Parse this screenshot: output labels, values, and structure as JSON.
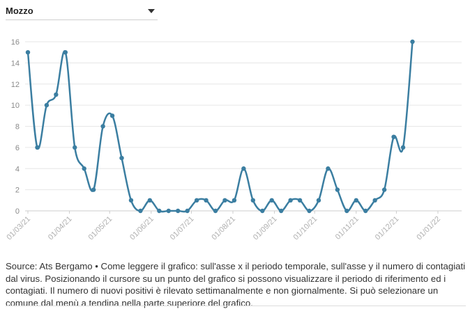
{
  "dropdown": {
    "selected": "Mozzo"
  },
  "footer": {
    "text": "Source: Ats Bergamo • Come leggere il grafico: sull'asse x il periodo temporale, sull'asse y il numero di contagiati dal virus. Posizionando il cursore su un punto del grafico si possono visualizzare il periodo di riferimento ed i contagiati. Il numero di nuovi positivi è rilevato settimanalmente e non giornalmente. Si può selezionare un comune dal menù a tendina nella parte superiore del grafico."
  },
  "colors": {
    "line": "#3b7ea1",
    "grid": "#e6e6e6",
    "axis": "#cccccc"
  },
  "chart_data": {
    "type": "line",
    "title": "",
    "xlabel": "",
    "ylabel": "",
    "ylim": [
      0,
      16
    ],
    "yticks": [
      0,
      2,
      4,
      6,
      8,
      10,
      12,
      14,
      16
    ],
    "xlim": [
      "2021-03-01",
      "2022-01-01"
    ],
    "xticks": [
      "01/03/21",
      "01/04/21",
      "01/05/21",
      "01/06/21",
      "01/07/21",
      "01/08/21",
      "01/09/21",
      "01/10/21",
      "01/11/21",
      "01/12/21",
      "01/01/22"
    ],
    "grid": true,
    "series": [
      {
        "x": [
          "2021-03-01",
          "2021-03-08",
          "2021-03-15",
          "2021-03-22",
          "2021-03-29",
          "2021-04-05",
          "2021-04-12",
          "2021-04-19",
          "2021-04-26",
          "2021-05-03",
          "2021-05-10",
          "2021-05-17",
          "2021-05-24",
          "2021-05-31",
          "2021-06-07",
          "2021-06-14",
          "2021-06-21",
          "2021-06-28",
          "2021-07-05",
          "2021-07-12",
          "2021-07-19",
          "2021-07-26",
          "2021-08-02",
          "2021-08-09",
          "2021-08-16",
          "2021-08-23",
          "2021-08-30",
          "2021-09-06",
          "2021-09-13",
          "2021-09-20",
          "2021-09-27",
          "2021-10-04",
          "2021-10-11",
          "2021-10-18",
          "2021-10-25",
          "2021-11-01",
          "2021-11-08",
          "2021-11-15",
          "2021-11-22",
          "2021-11-29",
          "2021-12-06",
          "2021-12-13"
        ],
        "values": [
          15,
          6,
          10,
          11,
          15,
          6,
          4,
          2,
          8,
          9,
          5,
          1,
          0,
          1,
          0,
          0,
          0,
          0,
          1,
          1,
          0,
          1,
          1,
          4,
          1,
          0,
          1,
          0,
          1,
          1,
          0,
          1,
          4,
          2,
          0,
          1,
          0,
          1,
          2,
          7,
          6,
          16
        ]
      }
    ]
  }
}
